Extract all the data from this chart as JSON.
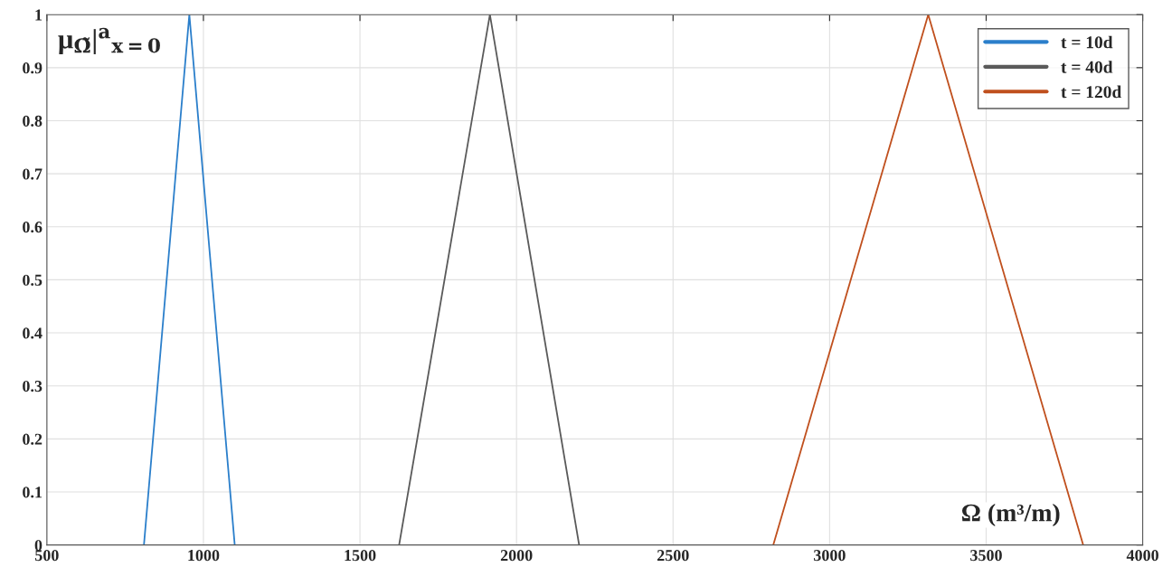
{
  "chart_data": {
    "type": "line",
    "xlabel": "Ω (m³/m)",
    "ylabel": "μ$_{Ω̃}$|$^{a}$$_{x=0}$",
    "series": [
      {
        "name": "t = 10d",
        "color": "#2b7fcb",
        "x": [
          810,
          955,
          1100
        ],
        "values": [
          0,
          1,
          0
        ]
      },
      {
        "name": "t = 40d",
        "color": "#5a5a5a",
        "x": [
          1625,
          1915,
          2200
        ],
        "values": [
          0,
          1,
          0
        ]
      },
      {
        "name": "t = 120d",
        "color": "#c0501e",
        "x": [
          2820,
          3315,
          3810
        ],
        "values": [
          0,
          1,
          0
        ]
      }
    ],
    "xlim": [
      500,
      4000
    ],
    "xticks": [
      500,
      1000,
      1500,
      2000,
      2500,
      3000,
      3500,
      4000
    ],
    "ylim": [
      0,
      1
    ],
    "yticks": [
      0,
      0.1,
      0.2,
      0.3,
      0.4,
      0.5,
      0.6,
      0.7,
      0.8,
      0.9,
      1
    ],
    "grid": true,
    "legend": "top right",
    "marker": "none",
    "line_style": "solid"
  }
}
